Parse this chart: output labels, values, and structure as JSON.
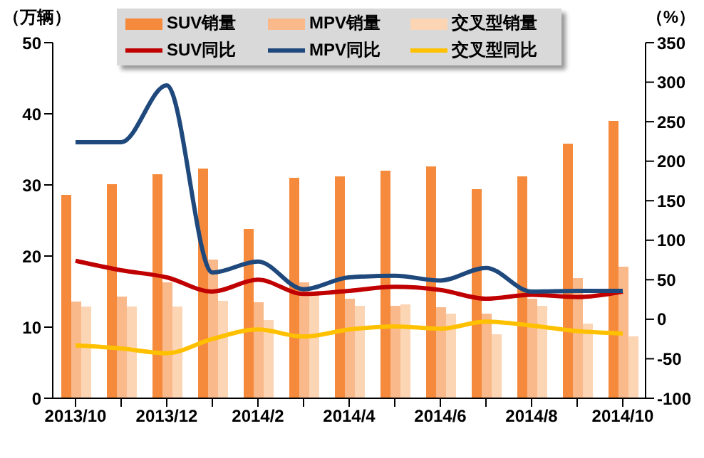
{
  "chart_data": {
    "type": "bar",
    "ylabel": "（万辆）",
    "y2label": "（%）",
    "categories": [
      "2013/10",
      null,
      "2013/12",
      null,
      "2014/2",
      null,
      "2014/4",
      null,
      "2014/6",
      null,
      "2014/8",
      null,
      "2014/10"
    ],
    "series": [
      {
        "name": "SUV销量",
        "color": "#f58a3c",
        "values": [
          28.6,
          30.1,
          31.5,
          32.3,
          23.8,
          31.0,
          31.2,
          32.0,
          32.6,
          29.4,
          31.2,
          35.8,
          39.0
        ]
      },
      {
        "name": "MPV销量",
        "color": "#fab98b",
        "values": [
          13.6,
          14.3,
          16.3,
          19.5,
          13.5,
          16.3,
          14.0,
          13.0,
          12.8,
          11.9,
          14.0,
          16.9,
          18.5
        ]
      },
      {
        "name": "交叉型销量",
        "color": "#fcd5b4",
        "values": [
          12.9,
          12.9,
          12.9,
          13.7,
          11.0,
          14.5,
          13.0,
          13.2,
          11.9,
          9.0,
          13.0,
          10.5,
          8.7
        ]
      },
      {
        "name": "SUV同比",
        "type": "line",
        "axis": "y2",
        "color": "#c00000",
        "values": [
          74,
          62,
          53,
          35,
          50,
          32,
          36,
          41,
          37,
          26,
          31,
          28,
          35
        ]
      },
      {
        "name": "MPV同比",
        "type": "line",
        "axis": "y2",
        "color": "#1f497d",
        "values": [
          224,
          224,
          296,
          59,
          73,
          38,
          53,
          55,
          49,
          65,
          35,
          36,
          36
        ]
      },
      {
        "name": "交叉型同比",
        "type": "line",
        "axis": "y2",
        "color": "#ffc000",
        "values": [
          -33,
          -37,
          -43,
          -25,
          -13,
          -22,
          -13,
          -9,
          -12,
          -3,
          -8,
          -15,
          -18
        ]
      }
    ],
    "ylim": [
      0,
      50
    ],
    "yticks": [
      0,
      10,
      20,
      30,
      40,
      50
    ],
    "y2lim": [
      -100,
      350
    ],
    "y2ticks": [
      -100,
      -50,
      0,
      50,
      100,
      150,
      200,
      250,
      300,
      350
    ],
    "grid": false,
    "legend": "top",
    "marker": "none",
    "line_style": "solid"
  }
}
